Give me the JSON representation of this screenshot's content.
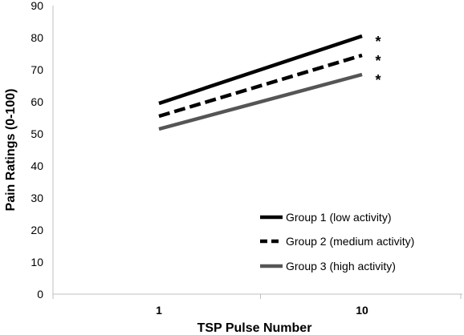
{
  "chart_data": {
    "type": "line",
    "categories": [
      "1",
      "10"
    ],
    "xlabel": "TSP Pulse Number",
    "ylabel": "Pain Ratings (0-100)",
    "ylim": [
      0,
      90
    ],
    "yticks": [
      0,
      10,
      20,
      30,
      40,
      50,
      60,
      70,
      80,
      90
    ],
    "grid": false,
    "legend_position": "bottom-right",
    "series": [
      {
        "name": "Group 1 (low activity)",
        "values": [
          59.5,
          80.5
        ],
        "color": "#000000",
        "dash": "solid",
        "annotation": "*"
      },
      {
        "name": "Group 2 (medium activity)",
        "values": [
          55.5,
          74.5
        ],
        "color": "#000000",
        "dash": "dashed",
        "annotation": "*"
      },
      {
        "name": "Group 3 (high activity)",
        "values": [
          51.5,
          68.5
        ],
        "color": "#555555",
        "dash": "solid",
        "annotation": "*"
      }
    ]
  }
}
